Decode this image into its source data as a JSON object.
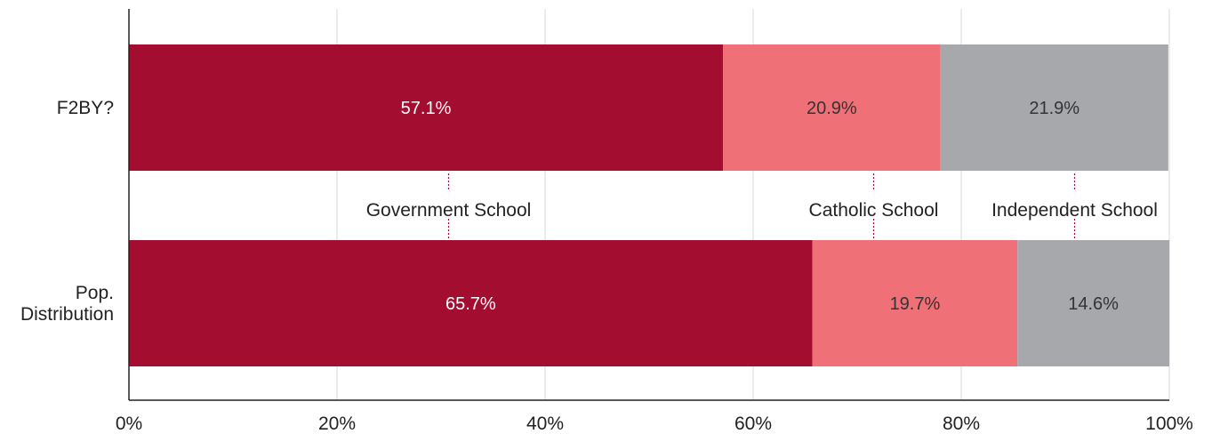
{
  "chart_data": {
    "type": "bar",
    "orientation": "horizontal",
    "stacked": true,
    "categories": [
      "F2BY?",
      "Pop.\nDistribution"
    ],
    "series": [
      {
        "name": "Government School",
        "values": [
          57.1,
          65.7
        ],
        "color": "#a30d2f",
        "label_color": "#ffffff"
      },
      {
        "name": "Catholic School",
        "values": [
          20.9,
          19.7
        ],
        "color": "#f07078",
        "label_color": "#333333"
      },
      {
        "name": "Independent School",
        "values": [
          21.9,
          14.6
        ],
        "color": "#a7a8ab",
        "label_color": "#333333"
      }
    ],
    "value_labels": [
      [
        "57.1%",
        "65.7%"
      ],
      [
        "20.9%",
        "19.7%"
      ],
      [
        "21.9%",
        "14.6%"
      ]
    ],
    "xlim": [
      0,
      100
    ],
    "x_ticks": [
      0,
      20,
      40,
      60,
      80,
      100
    ],
    "x_tick_labels": [
      "0%",
      "20%",
      "40%",
      "60%",
      "80%",
      "100%"
    ],
    "grid": true,
    "legend_placement": "between bars"
  }
}
